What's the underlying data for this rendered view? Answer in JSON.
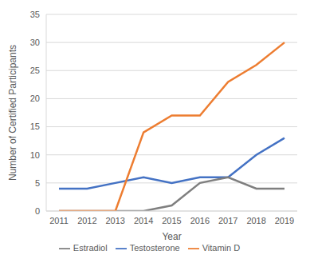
{
  "chart_data": {
    "type": "line",
    "x_label": "Year",
    "y_label": "Number of Certified Participants",
    "categories": [
      "2011",
      "2012",
      "2013",
      "2014",
      "2015",
      "2016",
      "2017",
      "2018",
      "2019"
    ],
    "series": [
      {
        "name": "Testosterone",
        "color": "#4472c4",
        "values": [
          4,
          4,
          5,
          6,
          5,
          6,
          6,
          10,
          13
        ]
      },
      {
        "name": "Estradiol",
        "color": "#7f7f7f",
        "values": [
          0,
          0,
          0,
          0,
          1,
          5,
          6,
          4,
          4
        ]
      },
      {
        "name": "Vitamin D",
        "color": "#ed7d31",
        "values": [
          0,
          0,
          0,
          14,
          17,
          17,
          23,
          26,
          30
        ]
      }
    ],
    "ylim": [
      0,
      35
    ],
    "yticks": [
      0,
      5,
      10,
      15,
      20,
      25,
      30,
      35
    ],
    "grid": true,
    "legend": "bottom"
  }
}
